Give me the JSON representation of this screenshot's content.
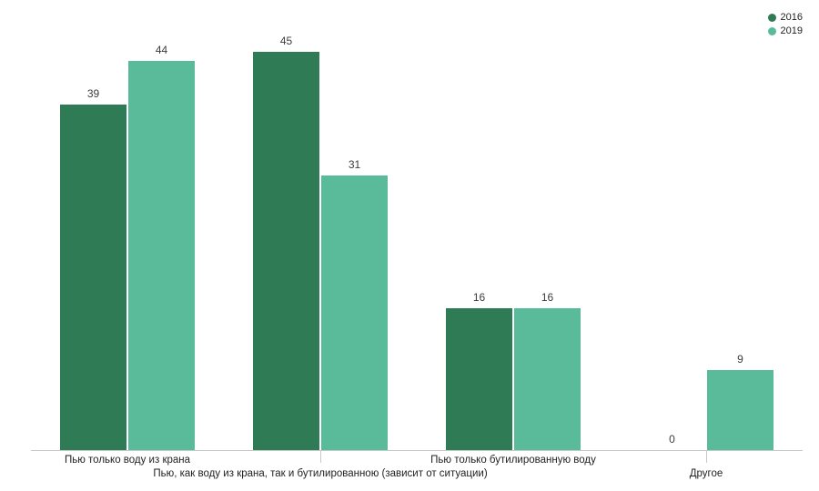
{
  "chart_data": {
    "type": "bar",
    "title": "",
    "categories": [
      "Пью только воду из крана",
      "Пью, как воду из крана, так и бутилированною (зависит от ситуации)",
      "Пью только бутилированную воду",
      "Другое"
    ],
    "series": [
      {
        "name": "2016",
        "color": "#2e7b55",
        "values": [
          39,
          45,
          16,
          0
        ]
      },
      {
        "name": "2019",
        "color": "#59bb9a",
        "values": [
          44,
          31,
          16,
          9
        ]
      }
    ],
    "ylim": [
      0,
      45
    ],
    "grid": false,
    "legend_position": "top-right",
    "xlabel": "",
    "ylabel": "",
    "axis_color": "#c7c7c7",
    "category_label_color": "#222222",
    "value_label_color": "#3c3c3c",
    "background_color": "#ffffff"
  },
  "legend": {
    "items": [
      {
        "label": "2016",
        "color": "#2e7b55"
      },
      {
        "label": "2019",
        "color": "#59bb9a"
      }
    ]
  }
}
